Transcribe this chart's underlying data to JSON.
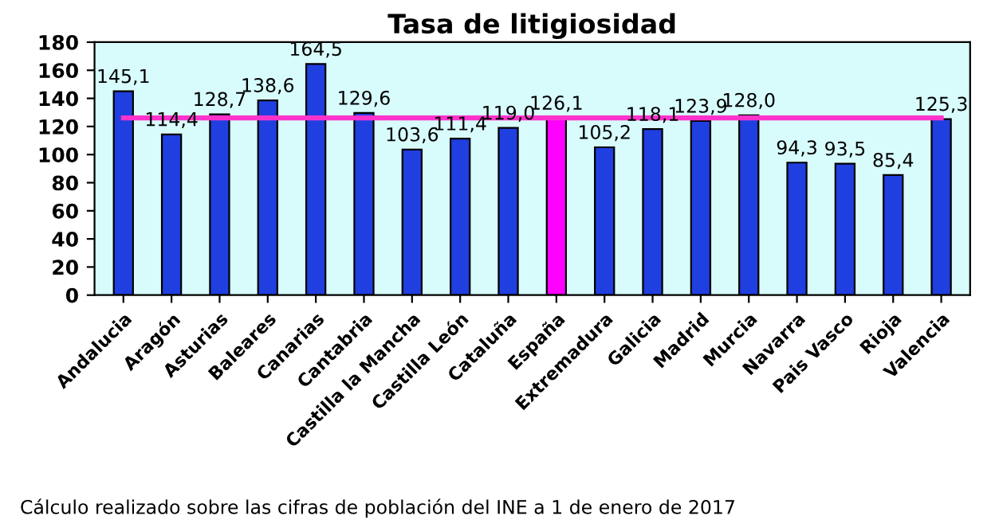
{
  "chart_data": {
    "type": "bar",
    "title": "Tasa de litigiosidad",
    "categories": [
      "Andalucia",
      "Aragón",
      "Asturias",
      "Baleares",
      "Canarias",
      "Cantabria",
      "Castilla la Mancha",
      "Castilla León",
      "Cataluña",
      "España",
      "Extremadura",
      "Galicia",
      "Madrid",
      "Murcia",
      "Navarra",
      "Pais Vasco",
      "Rioja",
      "Valencia"
    ],
    "values": [
      145.1,
      114.4,
      128.7,
      138.6,
      164.5,
      129.6,
      103.6,
      111.4,
      119.0,
      126.1,
      105.2,
      118.1,
      123.9,
      128.0,
      94.3,
      93.5,
      85.4,
      125.3
    ],
    "value_labels": [
      "145,1",
      "114,4",
      "128,7",
      "138,6",
      "164,5",
      "129,6",
      "103,6",
      "111,4",
      "119,0",
      "126,1",
      "105,2",
      "118,1",
      "123,9",
      "128,0",
      "94,3",
      "93,5",
      "85,4",
      "125,3"
    ],
    "colors": [
      "#1f3fe0",
      "#1f3fe0",
      "#1f3fe0",
      "#1f3fe0",
      "#1f3fe0",
      "#1f3fe0",
      "#1f3fe0",
      "#1f3fe0",
      "#1f3fe0",
      "#ff00ff",
      "#1f3fe0",
      "#1f3fe0",
      "#1f3fe0",
      "#1f3fe0",
      "#1f3fe0",
      "#1f3fe0",
      "#1f3fe0",
      "#1f3fe0"
    ],
    "ylim": [
      0,
      180
    ],
    "yticks": [
      0,
      20,
      40,
      60,
      80,
      100,
      120,
      140,
      160,
      180
    ],
    "grid": false,
    "ref_lines": [
      {
        "axis": "y",
        "value": 126.1,
        "color": "#ff33cc"
      }
    ],
    "annotations": [
      "Cálculo realizado sobre las cifras de población del INE a 1 de enero de 2017"
    ]
  }
}
